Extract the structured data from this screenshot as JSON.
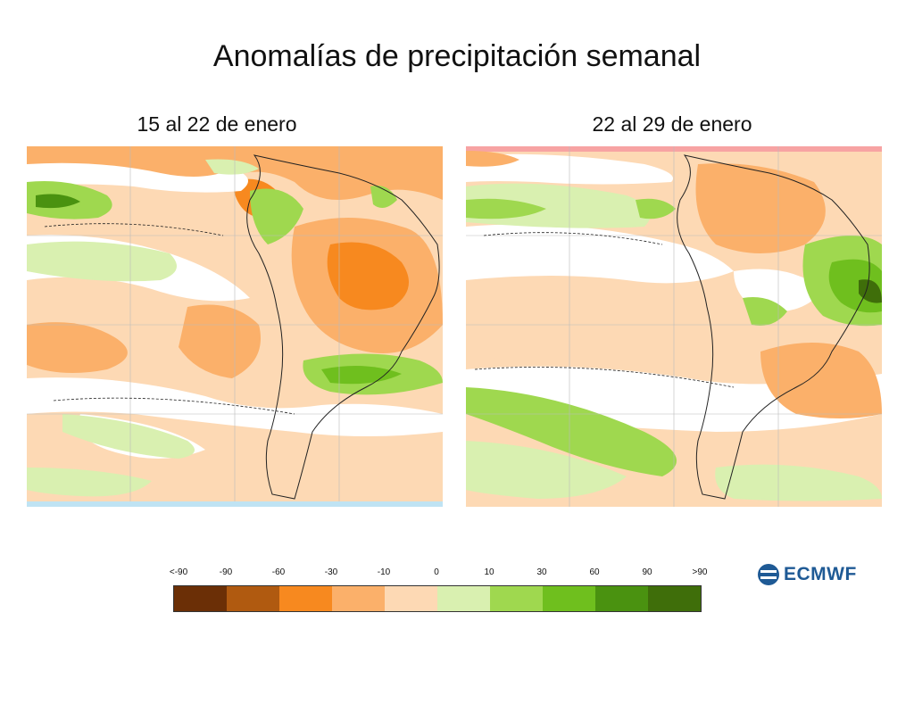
{
  "title": "Anomalías de precipitación semanal",
  "panels": [
    {
      "subtitle": "15 al 22 de enero"
    },
    {
      "subtitle": "22 al 29 de enero"
    }
  ],
  "legend": {
    "labels": [
      "<-90",
      "-90",
      "-60",
      "-30",
      "-10",
      "0",
      "10",
      "30",
      "60",
      "90",
      ">90"
    ],
    "colors": [
      "#6b2f06",
      "#b05a10",
      "#f7891f",
      "#fbb06a",
      "#fdd9b4",
      "#ffffff",
      "#d9f0b0",
      "#9fd84f",
      "#6fbf1e",
      "#4a9210",
      "#3f6e0a"
    ]
  },
  "logo": {
    "text": "ECMWF",
    "icon": "ecmwf-logo-icon"
  },
  "colors": {
    "very_dry": "#f7891f",
    "dry": "#fbb06a",
    "slightly_dry": "#fdd9b4",
    "neutral": "#ffffff",
    "slightly_wet": "#d9f0b0",
    "wet": "#9fd84f",
    "very_wet": "#4a9210"
  }
}
